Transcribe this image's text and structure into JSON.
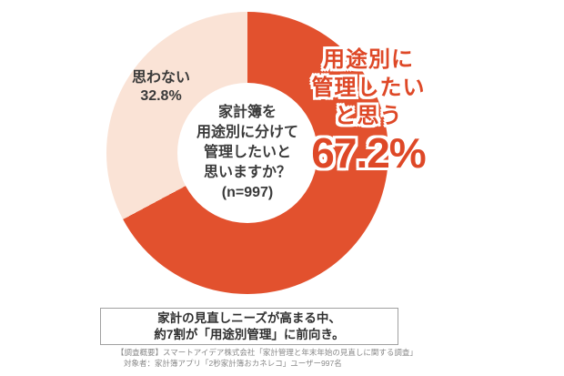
{
  "chart_data": {
    "type": "pie",
    "subtype": "donut",
    "title": "家計簿を用途別に分けて管理したいと思いますか？",
    "sample_size_label": "(n=997)",
    "segments": [
      {
        "label": "用途別に管理したいと思う",
        "value": 67.2,
        "color": "#e2512e"
      },
      {
        "label": "思わない",
        "value": 32.8,
        "color": "#fae3d6"
      }
    ],
    "start_angle_deg": 0,
    "direction": "clockwise",
    "legend_position": "labels-on-chart"
  },
  "donut_center": {
    "lines": [
      "家計簿を",
      "用途別に分けて",
      "管理したいと",
      "思いますか？",
      "(n=997)"
    ]
  },
  "labels": {
    "no": {
      "text": "思わない",
      "pct": "32.8%"
    },
    "yes": {
      "line1": "用途別に",
      "line2": "管理したい",
      "line3": "と思う",
      "pct": "67.2%"
    }
  },
  "summary_box": {
    "line1": "家計の見直しニーズが高まる中、",
    "line2": "約7割が「用途別管理」に前向き。"
  },
  "footer": {
    "line1": "【調査概要】スマートアイデア株式会社「家計管理と年末年始の見直しに関する調査」",
    "line2": "対象者：家計簿アプリ「2秒家計簿おカネレコ」ユーザー997名"
  },
  "colors": {
    "red": "#e2512e",
    "pink": "#fae3d6",
    "label_red": "#de4827",
    "text_dark": "#3a3a3a",
    "footer_gray": "#888888"
  }
}
